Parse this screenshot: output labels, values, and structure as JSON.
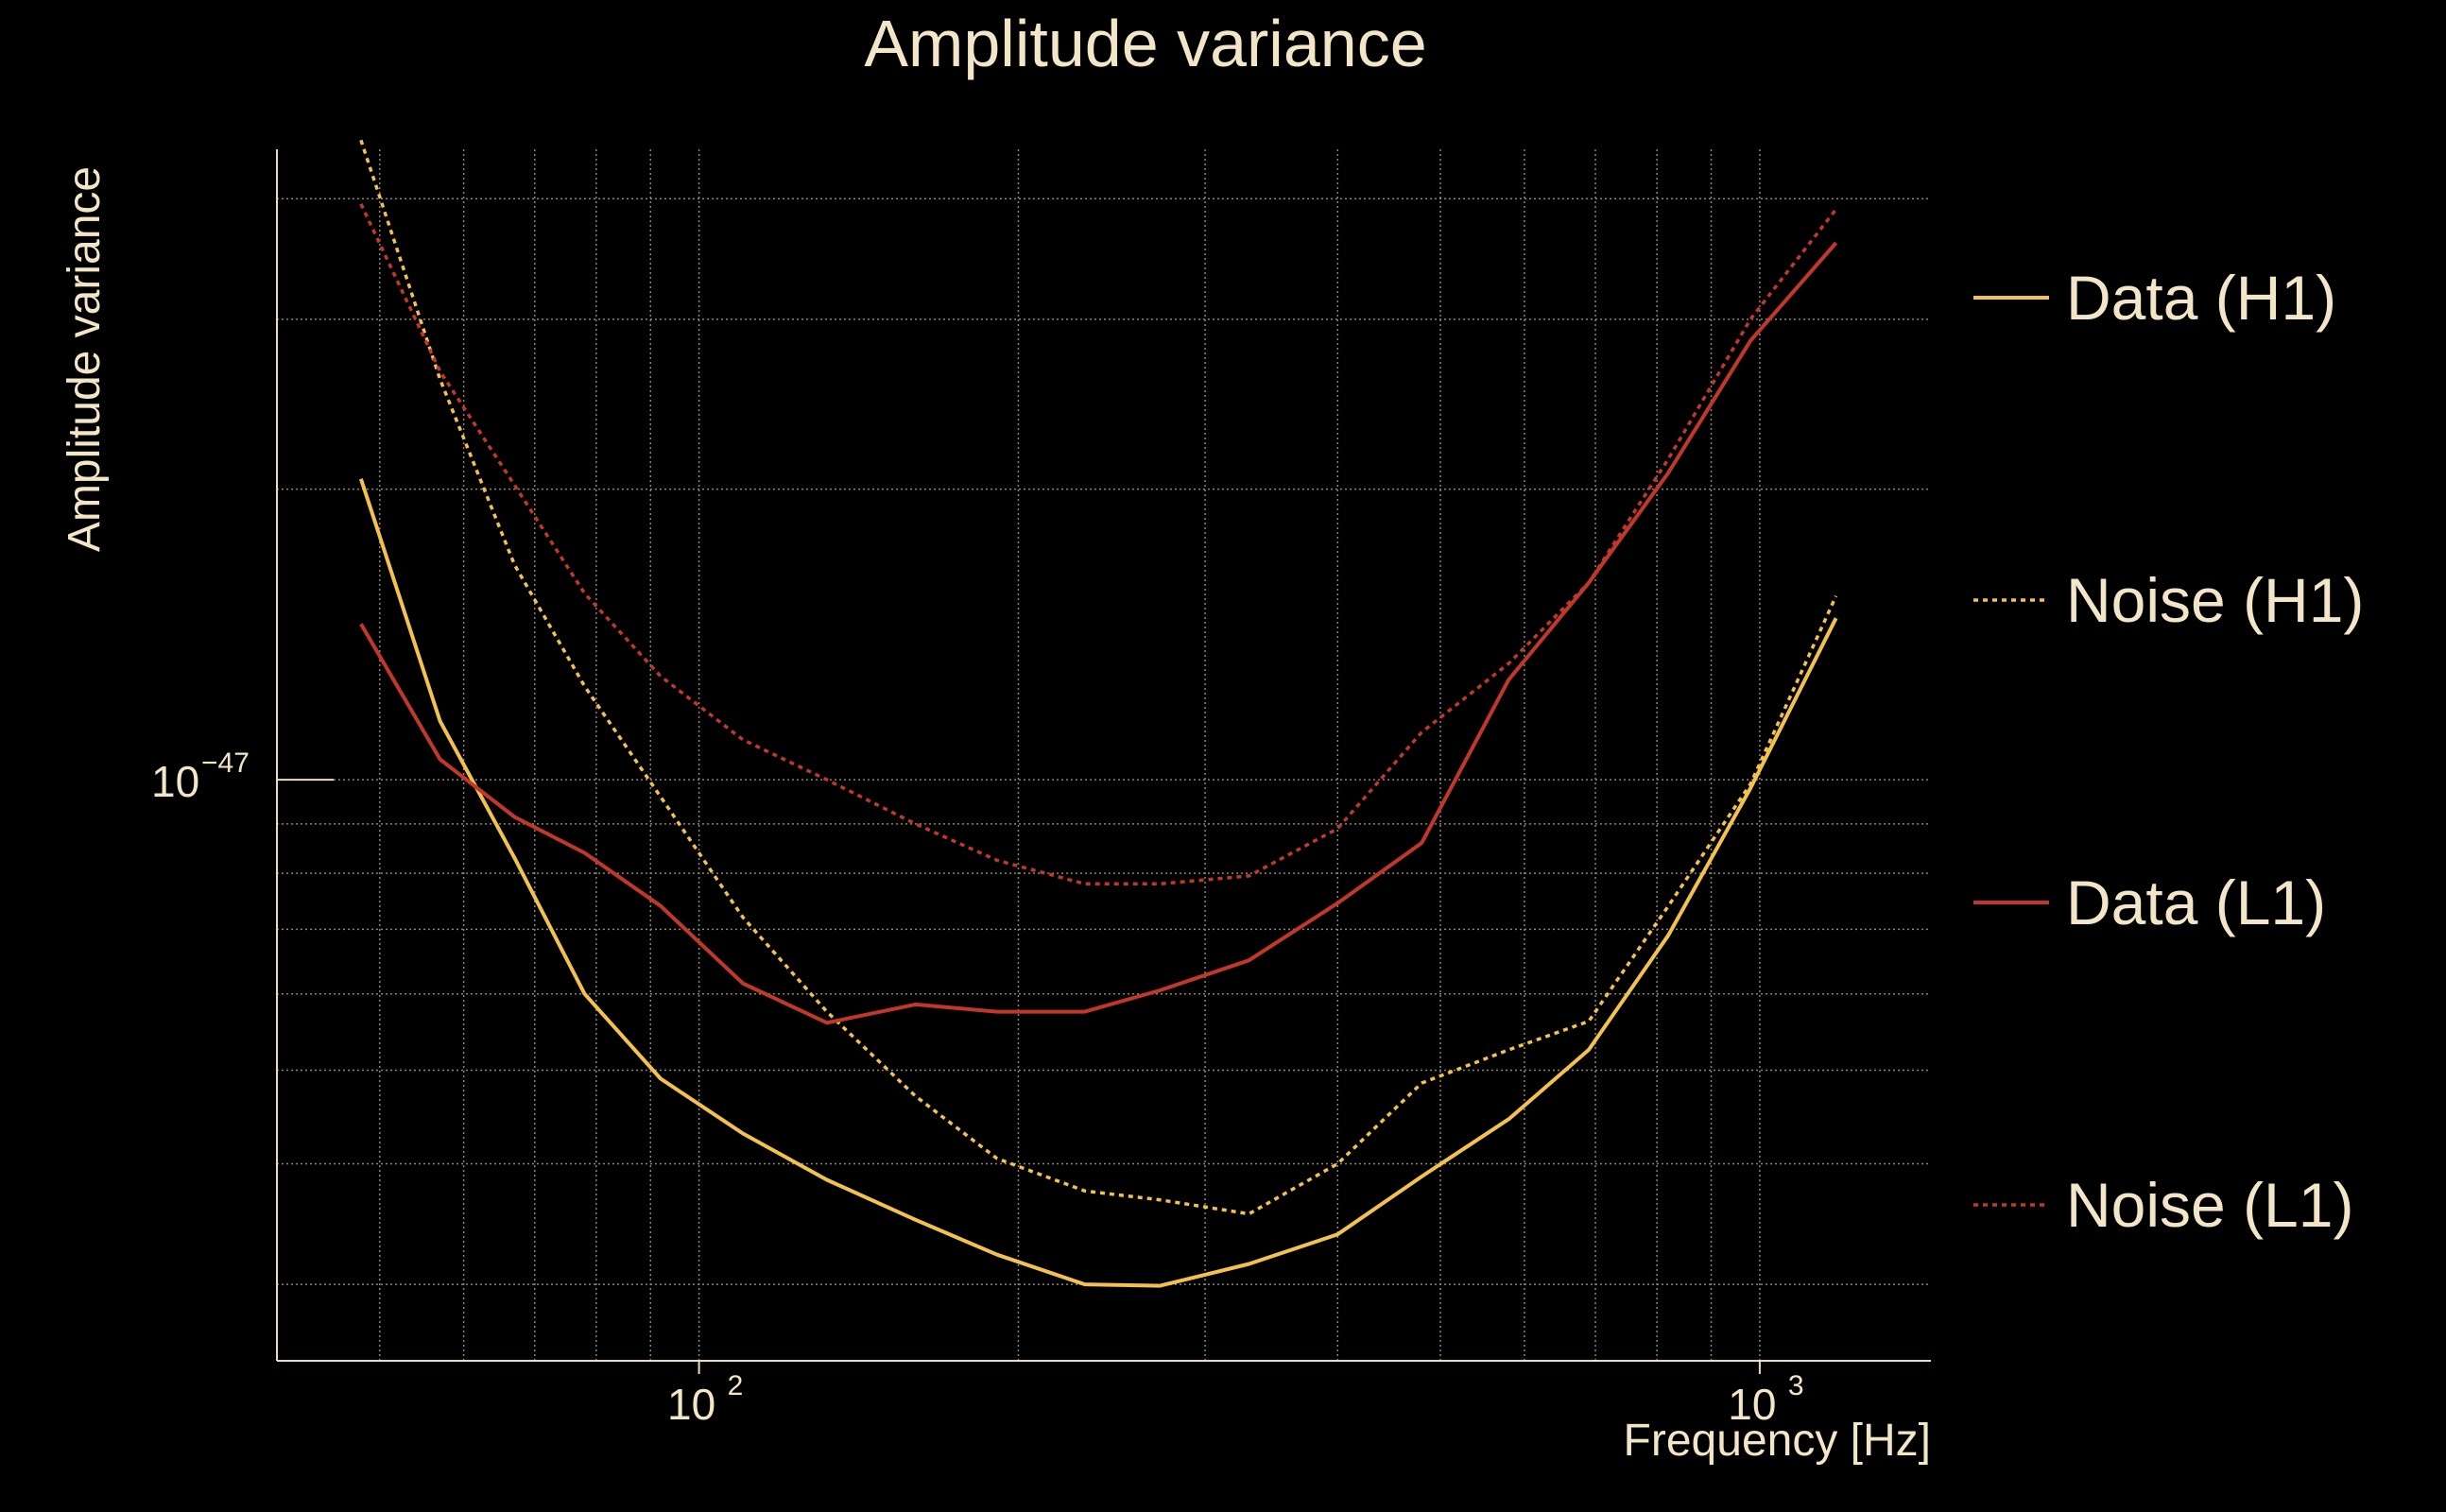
{
  "chart_data": {
    "type": "line",
    "title": "Amplitude variance",
    "xlabel": "Frequency [Hz]",
    "ylabel": "Amplitude variance",
    "xscale": "log",
    "yscale": "log",
    "xlim": [
      40,
      1450
    ],
    "ylim": [
      2.5e-48,
      4.5e-47
    ],
    "grid": true,
    "legend_position": "right",
    "x_ticks": [
      {
        "value": 100,
        "base": "10",
        "exp": "2"
      },
      {
        "value": 1000,
        "base": "10",
        "exp": "3"
      }
    ],
    "y_ticks": [
      {
        "value": 1e-47,
        "base": "10",
        "exp": "−47"
      }
    ],
    "series": [
      {
        "name": "Data (H1)",
        "color": "#f2c14e",
        "style": "solid",
        "x": [
          48,
          57,
          67,
          78,
          92,
          110,
          132,
          160,
          191,
          231,
          272,
          330,
          400,
          480,
          580,
          690,
          820,
          980,
          1180
        ],
        "y": [
          2.05e-47,
          1.15e-47,
          8.3e-48,
          6e-48,
          4.9e-48,
          4.3e-48,
          3.85e-48,
          3.5e-48,
          3.22e-48,
          3e-48,
          2.99e-48,
          3.15e-48,
          3.38e-48,
          3.88e-48,
          4.45e-48,
          5.25e-48,
          6.9e-48,
          9.8e-48,
          1.47e-47
        ]
      },
      {
        "name": "Noise (H1)",
        "color": "#f2c14e",
        "style": "dotted",
        "x": [
          48,
          57,
          67,
          78,
          92,
          110,
          132,
          160,
          191,
          231,
          272,
          330,
          400,
          480,
          580,
          690,
          820,
          980,
          1180
        ],
        "y": [
          4.6e-47,
          2.6e-47,
          1.67e-47,
          1.25e-47,
          9.6e-48,
          7.2e-48,
          5.75e-48,
          4.7e-48,
          4.05e-48,
          3.75e-48,
          3.67e-48,
          3.55e-48,
          4e-48,
          4.85e-48,
          5.25e-48,
          5.62e-48,
          7.4e-48,
          9.9e-48,
          1.55e-47
        ]
      },
      {
        "name": "Data (L1)",
        "color": "#c2372c",
        "style": "solid",
        "x": [
          48,
          57,
          67,
          78,
          92,
          110,
          132,
          160,
          191,
          231,
          272,
          330,
          400,
          480,
          580,
          690,
          820,
          980,
          1180
        ],
        "y": [
          1.45e-47,
          1.05e-47,
          9.15e-48,
          8.4e-48,
          7.4e-48,
          6.15e-48,
          5.6e-48,
          5.85e-48,
          5.75e-48,
          5.75e-48,
          6.05e-48,
          6.5e-48,
          7.45e-48,
          8.6e-48,
          1.27e-47,
          1.6e-47,
          2.08e-47,
          2.85e-47,
          3.6e-47
        ]
      },
      {
        "name": "Noise (L1)",
        "color": "#c2372c",
        "style": "dotted",
        "x": [
          48,
          57,
          67,
          78,
          92,
          110,
          132,
          160,
          191,
          231,
          272,
          330,
          400,
          480,
          580,
          690,
          820,
          980,
          1180
        ],
        "y": [
          3.95e-47,
          2.65e-47,
          2.02e-47,
          1.56e-47,
          1.28e-47,
          1.1e-47,
          1e-47,
          9e-48,
          8.25e-48,
          7.8e-48,
          7.8e-48,
          7.95e-48,
          8.9e-48,
          1.12e-47,
          1.32e-47,
          1.6e-47,
          2.15e-47,
          3e-47,
          3.9e-47
        ]
      }
    ]
  }
}
